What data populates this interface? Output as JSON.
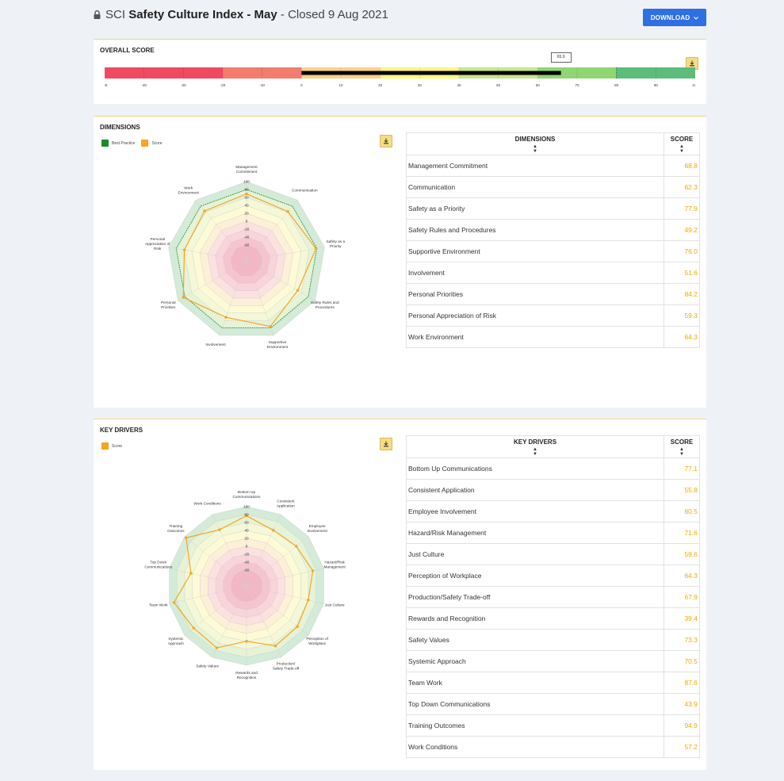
{
  "header": {
    "prefix": "SCI",
    "title_bold": "Safety Culture Index - May",
    "closed_text": " - Closed 9 Aug 2021",
    "download_label": "DOWNLOAD"
  },
  "overall": {
    "title": "OVERALL SCORE",
    "score": 65.9,
    "score_label": "65.9",
    "range": [
      -50,
      100
    ],
    "tick_labels": [
      "-50",
      "-40",
      "-30",
      "-20",
      "-10",
      "0",
      "10",
      "20",
      "30",
      "40",
      "50",
      "60",
      "70",
      "80",
      "90",
      "100"
    ],
    "band_colors": [
      "#ee4b62",
      "#f27c6e",
      "#fbd08a",
      "#fdf67c",
      "#c5e68c",
      "#8fd672",
      "#5cbd7a"
    ]
  },
  "dimensions": {
    "title": "DIMENSIONS",
    "legend": [
      "Best Practice",
      "Score"
    ],
    "legend_colors": [
      "#1f8a2a",
      "#f5a623"
    ],
    "table_header": [
      "DIMENSIONS",
      "SCORE"
    ],
    "rows": [
      {
        "name": "Management Commitment",
        "score": "68.8"
      },
      {
        "name": "Communication",
        "score": "62.3"
      },
      {
        "name": "Safety as a Priority",
        "score": "77.9"
      },
      {
        "name": "Safety Rules and Procedures",
        "score": "49.2"
      },
      {
        "name": "Supportive Environment",
        "score": "76.0"
      },
      {
        "name": "Involvement",
        "score": "51.6"
      },
      {
        "name": "Personal Priorities",
        "score": "84.2"
      },
      {
        "name": "Personal Appreciation of Risk",
        "score": "59.3"
      },
      {
        "name": "Work Environment",
        "score": "64.3"
      }
    ]
  },
  "key_drivers": {
    "title": "KEY DRIVERS",
    "legend": [
      "Score"
    ],
    "legend_colors": [
      "#f5a623"
    ],
    "table_header": [
      "KEY DRIVERS",
      "SCORE"
    ],
    "rows": [
      {
        "name": "Bottom Up Communications",
        "score": "77.1"
      },
      {
        "name": "Consistent Application",
        "score": "55.8"
      },
      {
        "name": "Employee Involvement",
        "score": "60.5"
      },
      {
        "name": "Hazard/Risk Management",
        "score": "71.6"
      },
      {
        "name": "Just Culture",
        "score": "59.6"
      },
      {
        "name": "Perception of Workplace",
        "score": "64.3"
      },
      {
        "name": "Production/Safety Trade-off",
        "score": "67.9"
      },
      {
        "name": "Rewards and Recognition",
        "score": "39.4"
      },
      {
        "name": "Safety Values",
        "score": "73.3"
      },
      {
        "name": "Systemic Approach",
        "score": "70.5"
      },
      {
        "name": "Team Work",
        "score": "87.6"
      },
      {
        "name": "Top Down Communications",
        "score": "43.9"
      },
      {
        "name": "Training Outcomes",
        "score": "94.9"
      },
      {
        "name": "Work Conditions",
        "score": "57.2"
      }
    ]
  },
  "chart_data": [
    {
      "type": "radar",
      "title": "",
      "axis_range": [
        -100,
        100
      ],
      "tick_labels": [
        "100",
        "80",
        "60",
        "40",
        "20",
        "0",
        "-20",
        "-40",
        "-60"
      ],
      "categories": [
        [
          "Management",
          "Commitment"
        ],
        [
          "Communication"
        ],
        [
          "Safety as a",
          "Priority"
        ],
        [
          "Safety Rules and",
          "Procedures"
        ],
        [
          "Supportive",
          "Environment"
        ],
        [
          "Involvement"
        ],
        [
          "Personal",
          "Priorities"
        ],
        [
          "Personal",
          "Appreciation of",
          "Risk"
        ],
        [
          "Work",
          "Environment"
        ]
      ],
      "series": [
        {
          "name": "Best Practice",
          "values": [
            80,
            80,
            80,
            80,
            80,
            80,
            80,
            80,
            80
          ]
        },
        {
          "name": "Score",
          "values": [
            68.8,
            62.3,
            77.9,
            49.2,
            76.0,
            51.6,
            84.2,
            59.3,
            64.3
          ]
        }
      ]
    },
    {
      "type": "radar",
      "title": "",
      "axis_range": [
        -100,
        100
      ],
      "tick_labels": [
        "100",
        "80",
        "60",
        "40",
        "20",
        "0",
        "-20",
        "-40",
        "-60"
      ],
      "categories": [
        [
          "Bottom Up",
          "Communications"
        ],
        [
          "Consistent",
          "Application"
        ],
        [
          "Employee",
          "Involvement"
        ],
        [
          "Hazard/Risk",
          "Management"
        ],
        [
          "Just Culture"
        ],
        [
          "Perception of",
          "Workplace"
        ],
        [
          "Production/",
          "Safety Trade-off"
        ],
        [
          "Rewards and",
          "Recognition"
        ],
        [
          "Safety Values"
        ],
        [
          "Systemic",
          "Approach"
        ],
        [
          "Team Work"
        ],
        [
          "Top Down",
          "Communications"
        ],
        [
          "Training",
          "Outcomes"
        ],
        [
          "Work Conditions"
        ]
      ],
      "series": [
        {
          "name": "Score",
          "values": [
            77.1,
            55.8,
            60.5,
            71.6,
            59.6,
            64.3,
            67.9,
            39.4,
            73.3,
            70.5,
            87.6,
            43.9,
            94.9,
            57.2
          ]
        }
      ]
    }
  ]
}
